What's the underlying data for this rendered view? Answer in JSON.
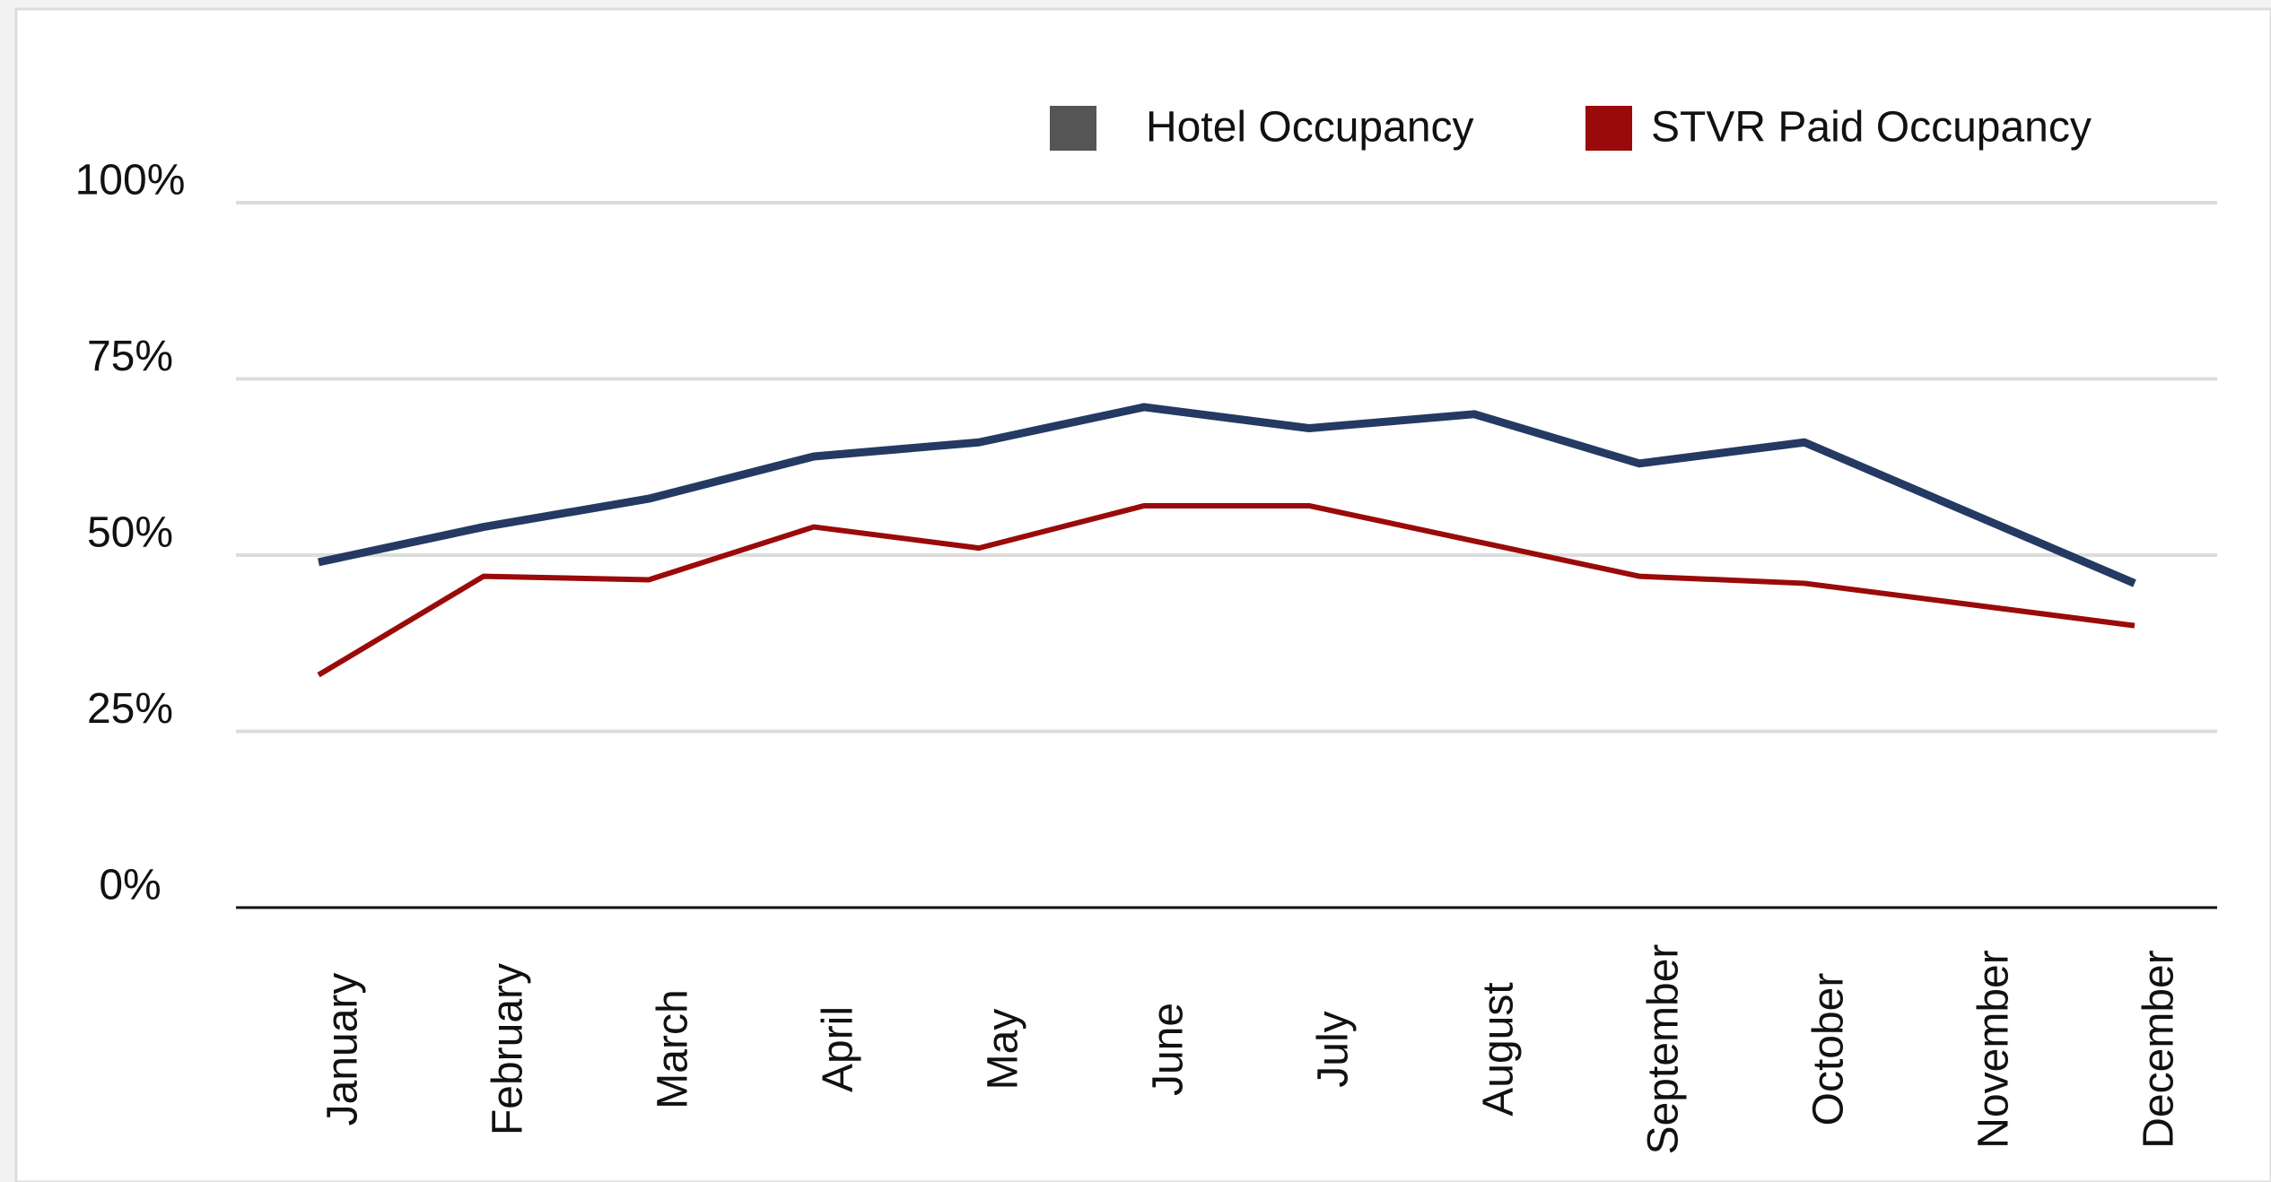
{
  "chart_data": {
    "type": "line",
    "categories": [
      "January",
      "February",
      "March",
      "April",
      "May",
      "June",
      "July",
      "August",
      "September",
      "October",
      "November",
      "December"
    ],
    "series": [
      {
        "name": "Hotel Occupancy",
        "color": "#243a63",
        "legend_color": "#555555",
        "values": [
          49,
          54,
          58,
          64,
          66,
          71,
          68,
          70,
          63,
          66,
          56,
          46
        ]
      },
      {
        "name": "STVR Paid Occupancy",
        "color": "#9b0a0a",
        "legend_color": "#9b0a0a",
        "values": [
          33,
          47,
          46.5,
          54,
          51,
          57,
          57,
          52,
          47,
          46,
          43,
          40
        ]
      }
    ],
    "ylim": [
      0,
      100
    ],
    "yticks": [
      {
        "value": 0,
        "label": "0%"
      },
      {
        "value": 25,
        "label": "25%"
      },
      {
        "value": 50,
        "label": "50%"
      },
      {
        "value": 75,
        "label": "75%"
      },
      {
        "value": 100,
        "label": "100%"
      }
    ],
    "grid": true,
    "legend": "top-right"
  }
}
